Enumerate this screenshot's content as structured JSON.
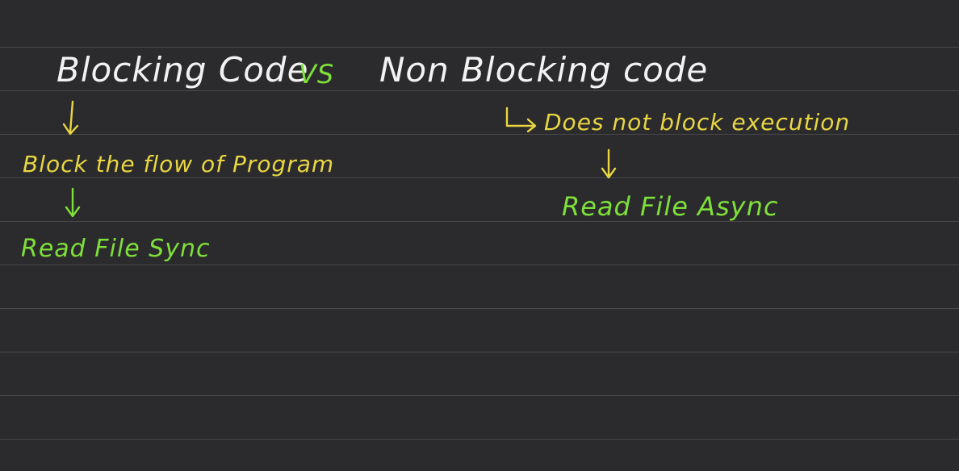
{
  "title": {
    "left": "Blocking Code",
    "vs": "VS",
    "right": "Non Blocking code"
  },
  "blocking": {
    "description": "Block the flow of Program",
    "method": "Read File Sync"
  },
  "non_blocking": {
    "description": "Does not block execution",
    "method": "Read File Async"
  },
  "colors": {
    "background": "#2b2b2d",
    "rule_line": "#4a4a4d",
    "chalk_white": "#f2f2f2",
    "chalk_yellow": "#e9d642",
    "chalk_green": "#7ee03a"
  }
}
